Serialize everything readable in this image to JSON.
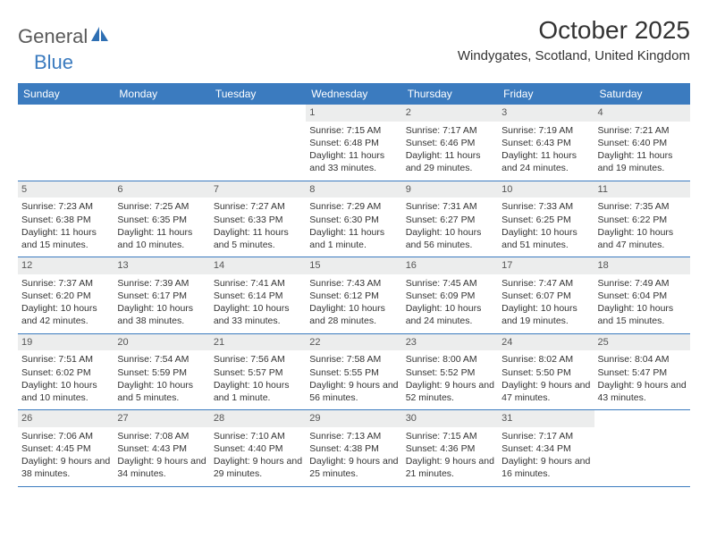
{
  "brand": {
    "part1": "General",
    "part2": "Blue"
  },
  "title": "October 2025",
  "location": "Windygates, Scotland, United Kingdom",
  "colors": {
    "header_bg": "#3b7bbf",
    "header_text": "#ffffff",
    "daynum_bg": "#eceded",
    "text": "#333333",
    "rule": "#3b7bbf"
  },
  "day_names": [
    "Sunday",
    "Monday",
    "Tuesday",
    "Wednesday",
    "Thursday",
    "Friday",
    "Saturday"
  ],
  "weeks": [
    [
      {
        "day": "",
        "sunrise": "",
        "sunset": "",
        "daylight": ""
      },
      {
        "day": "",
        "sunrise": "",
        "sunset": "",
        "daylight": ""
      },
      {
        "day": "",
        "sunrise": "",
        "sunset": "",
        "daylight": ""
      },
      {
        "day": "1",
        "sunrise": "Sunrise: 7:15 AM",
        "sunset": "Sunset: 6:48 PM",
        "daylight": "Daylight: 11 hours and 33 minutes."
      },
      {
        "day": "2",
        "sunrise": "Sunrise: 7:17 AM",
        "sunset": "Sunset: 6:46 PM",
        "daylight": "Daylight: 11 hours and 29 minutes."
      },
      {
        "day": "3",
        "sunrise": "Sunrise: 7:19 AM",
        "sunset": "Sunset: 6:43 PM",
        "daylight": "Daylight: 11 hours and 24 minutes."
      },
      {
        "day": "4",
        "sunrise": "Sunrise: 7:21 AM",
        "sunset": "Sunset: 6:40 PM",
        "daylight": "Daylight: 11 hours and 19 minutes."
      }
    ],
    [
      {
        "day": "5",
        "sunrise": "Sunrise: 7:23 AM",
        "sunset": "Sunset: 6:38 PM",
        "daylight": "Daylight: 11 hours and 15 minutes."
      },
      {
        "day": "6",
        "sunrise": "Sunrise: 7:25 AM",
        "sunset": "Sunset: 6:35 PM",
        "daylight": "Daylight: 11 hours and 10 minutes."
      },
      {
        "day": "7",
        "sunrise": "Sunrise: 7:27 AM",
        "sunset": "Sunset: 6:33 PM",
        "daylight": "Daylight: 11 hours and 5 minutes."
      },
      {
        "day": "8",
        "sunrise": "Sunrise: 7:29 AM",
        "sunset": "Sunset: 6:30 PM",
        "daylight": "Daylight: 11 hours and 1 minute."
      },
      {
        "day": "9",
        "sunrise": "Sunrise: 7:31 AM",
        "sunset": "Sunset: 6:27 PM",
        "daylight": "Daylight: 10 hours and 56 minutes."
      },
      {
        "day": "10",
        "sunrise": "Sunrise: 7:33 AM",
        "sunset": "Sunset: 6:25 PM",
        "daylight": "Daylight: 10 hours and 51 minutes."
      },
      {
        "day": "11",
        "sunrise": "Sunrise: 7:35 AM",
        "sunset": "Sunset: 6:22 PM",
        "daylight": "Daylight: 10 hours and 47 minutes."
      }
    ],
    [
      {
        "day": "12",
        "sunrise": "Sunrise: 7:37 AM",
        "sunset": "Sunset: 6:20 PM",
        "daylight": "Daylight: 10 hours and 42 minutes."
      },
      {
        "day": "13",
        "sunrise": "Sunrise: 7:39 AM",
        "sunset": "Sunset: 6:17 PM",
        "daylight": "Daylight: 10 hours and 38 minutes."
      },
      {
        "day": "14",
        "sunrise": "Sunrise: 7:41 AM",
        "sunset": "Sunset: 6:14 PM",
        "daylight": "Daylight: 10 hours and 33 minutes."
      },
      {
        "day": "15",
        "sunrise": "Sunrise: 7:43 AM",
        "sunset": "Sunset: 6:12 PM",
        "daylight": "Daylight: 10 hours and 28 minutes."
      },
      {
        "day": "16",
        "sunrise": "Sunrise: 7:45 AM",
        "sunset": "Sunset: 6:09 PM",
        "daylight": "Daylight: 10 hours and 24 minutes."
      },
      {
        "day": "17",
        "sunrise": "Sunrise: 7:47 AM",
        "sunset": "Sunset: 6:07 PM",
        "daylight": "Daylight: 10 hours and 19 minutes."
      },
      {
        "day": "18",
        "sunrise": "Sunrise: 7:49 AM",
        "sunset": "Sunset: 6:04 PM",
        "daylight": "Daylight: 10 hours and 15 minutes."
      }
    ],
    [
      {
        "day": "19",
        "sunrise": "Sunrise: 7:51 AM",
        "sunset": "Sunset: 6:02 PM",
        "daylight": "Daylight: 10 hours and 10 minutes."
      },
      {
        "day": "20",
        "sunrise": "Sunrise: 7:54 AM",
        "sunset": "Sunset: 5:59 PM",
        "daylight": "Daylight: 10 hours and 5 minutes."
      },
      {
        "day": "21",
        "sunrise": "Sunrise: 7:56 AM",
        "sunset": "Sunset: 5:57 PM",
        "daylight": "Daylight: 10 hours and 1 minute."
      },
      {
        "day": "22",
        "sunrise": "Sunrise: 7:58 AM",
        "sunset": "Sunset: 5:55 PM",
        "daylight": "Daylight: 9 hours and 56 minutes."
      },
      {
        "day": "23",
        "sunrise": "Sunrise: 8:00 AM",
        "sunset": "Sunset: 5:52 PM",
        "daylight": "Daylight: 9 hours and 52 minutes."
      },
      {
        "day": "24",
        "sunrise": "Sunrise: 8:02 AM",
        "sunset": "Sunset: 5:50 PM",
        "daylight": "Daylight: 9 hours and 47 minutes."
      },
      {
        "day": "25",
        "sunrise": "Sunrise: 8:04 AM",
        "sunset": "Sunset: 5:47 PM",
        "daylight": "Daylight: 9 hours and 43 minutes."
      }
    ],
    [
      {
        "day": "26",
        "sunrise": "Sunrise: 7:06 AM",
        "sunset": "Sunset: 4:45 PM",
        "daylight": "Daylight: 9 hours and 38 minutes."
      },
      {
        "day": "27",
        "sunrise": "Sunrise: 7:08 AM",
        "sunset": "Sunset: 4:43 PM",
        "daylight": "Daylight: 9 hours and 34 minutes."
      },
      {
        "day": "28",
        "sunrise": "Sunrise: 7:10 AM",
        "sunset": "Sunset: 4:40 PM",
        "daylight": "Daylight: 9 hours and 29 minutes."
      },
      {
        "day": "29",
        "sunrise": "Sunrise: 7:13 AM",
        "sunset": "Sunset: 4:38 PM",
        "daylight": "Daylight: 9 hours and 25 minutes."
      },
      {
        "day": "30",
        "sunrise": "Sunrise: 7:15 AM",
        "sunset": "Sunset: 4:36 PM",
        "daylight": "Daylight: 9 hours and 21 minutes."
      },
      {
        "day": "31",
        "sunrise": "Sunrise: 7:17 AM",
        "sunset": "Sunset: 4:34 PM",
        "daylight": "Daylight: 9 hours and 16 minutes."
      },
      {
        "day": "",
        "sunrise": "",
        "sunset": "",
        "daylight": ""
      }
    ]
  ]
}
